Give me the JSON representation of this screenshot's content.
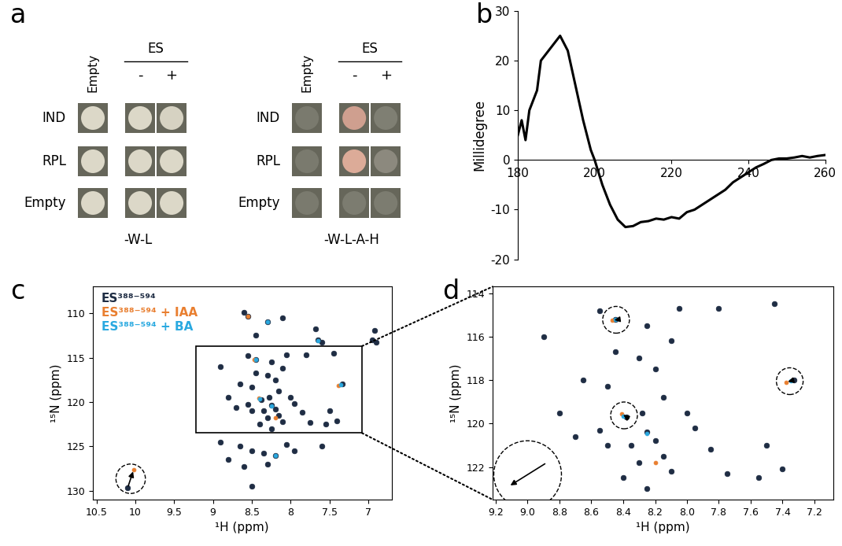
{
  "panel_labels": [
    "a",
    "b",
    "c",
    "d"
  ],
  "spot_assay": {
    "row_labels": [
      "IND",
      "RPL",
      "Empty"
    ],
    "column_labels": [
      "Empty",
      "-",
      "+"
    ],
    "group_label": "ES",
    "plates": [
      {
        "medium": "-W-L",
        "colors": [
          [
            "#dcd8c8",
            "#dcd8c8",
            "#d6d2c2"
          ],
          [
            "#dcd8c8",
            "#dcd8c8",
            "#dcd8c8"
          ],
          [
            "#dcd8c8",
            "#dcd8c8",
            "#dcd8c8"
          ]
        ]
      },
      {
        "medium": "-W-L-A-H",
        "colors": [
          [
            "#7a7a6e",
            "#cf9f8f",
            "#7f7f73"
          ],
          [
            "#7a7a6e",
            "#dcab98",
            "#8c897e"
          ],
          [
            "#7a7a6e",
            "#7c7c70",
            "#7c7c70"
          ]
        ]
      }
    ]
  },
  "chart_data": [
    {
      "type": "line",
      "ylabel": "Millidegree",
      "color": "#000000",
      "x": [
        180,
        181,
        182,
        183,
        185,
        186,
        188,
        190,
        191,
        193,
        195,
        197,
        199,
        200,
        202,
        204,
        206,
        208,
        210,
        212,
        214,
        216,
        218,
        220,
        222,
        224,
        226,
        228,
        230,
        232,
        234,
        236,
        238,
        240,
        242,
        244,
        246,
        248,
        250,
        252,
        254,
        256,
        258,
        260
      ],
      "values": [
        5,
        8,
        4,
        10,
        14,
        20,
        22,
        24,
        25,
        22,
        15,
        8,
        2,
        0,
        -5,
        -9,
        -12,
        -13.5,
        -13.3,
        -12.5,
        -12.3,
        -11.8,
        -12,
        -11.5,
        -11.8,
        -10.5,
        -10,
        -9,
        -8,
        -7,
        -6,
        -4.5,
        -3.5,
        -2.5,
        -1.5,
        -0.8,
        0,
        0.3,
        0.3,
        0.5,
        0.8,
        0.5,
        0.8,
        1
      ],
      "xlim": [
        180,
        260
      ],
      "xticks": [
        180,
        200,
        220,
        240,
        260
      ],
      "ylim": [
        -20,
        30
      ],
      "yticks": [
        -20,
        -10,
        0,
        10,
        20,
        30
      ]
    },
    {
      "type": "scatter",
      "xlabel": "¹H (ppm)",
      "ylabel": "¹⁵N (ppm)",
      "xlim": [
        10.55,
        6.7
      ],
      "xticks": [
        10.5,
        10,
        9.5,
        9,
        8.5,
        8,
        7.5,
        7
      ],
      "ylim": [
        131,
        107
      ],
      "yticks": [
        110,
        115,
        120,
        125,
        130
      ],
      "series": [
        {
          "name": "ES³⁸⁸⁻⁵⁹⁴",
          "color": "#1f2d44",
          "marker": "o",
          "x": [
            10.1,
            7.65,
            7.6,
            6.95,
            6.9,
            7.68,
            6.92,
            8.6,
            8.55,
            8.3,
            8.45,
            8.1,
            8.65,
            8.5,
            8.35,
            8.2,
            8.6,
            8.5,
            8.3,
            8.05,
            7.95,
            8.9,
            7.6,
            8.8,
            8.45,
            7.33,
            8.38,
            8.55,
            8.25,
            8.05,
            7.8,
            7.45,
            8.3,
            8.2,
            8.5,
            8.65,
            8.15,
            8.28,
            8.25,
            8.2,
            8.35,
            8.3,
            8.15,
            8.1,
            8.4,
            8.5,
            8.55,
            8.7,
            7.95,
            7.85,
            7.75,
            7.5,
            7.55,
            8.0,
            8.25,
            7.4,
            8.1,
            8.45,
            8.9,
            8.8
          ],
          "y": [
            129.7,
            113.0,
            113.3,
            113.0,
            113.3,
            111.8,
            111.9,
            109.9,
            110.3,
            111.0,
            112.5,
            110.5,
            125.0,
            125.5,
            125.8,
            126.0,
            127.3,
            129.5,
            127.0,
            124.8,
            125.5,
            124.5,
            125.0,
            126.5,
            115.2,
            118.0,
            119.7,
            114.8,
            115.5,
            114.7,
            114.7,
            114.5,
            117.0,
            117.5,
            118.3,
            118.0,
            118.8,
            119.5,
            120.4,
            120.8,
            121.0,
            121.8,
            121.5,
            122.2,
            122.5,
            121.0,
            120.3,
            120.6,
            120.2,
            121.2,
            122.3,
            121.0,
            122.5,
            119.5,
            123.0,
            122.1,
            116.2,
            116.7,
            116.0,
            119.5
          ]
        },
        {
          "name": "ES³⁸⁸⁻⁵⁹⁴ + IAA",
          "color": "#e97f30",
          "marker": "o",
          "x": [
            10.02,
            8.47,
            7.38,
            8.41,
            8.55,
            8.2
          ],
          "y": [
            127.6,
            115.25,
            118.1,
            119.55,
            110.3,
            121.8
          ]
        },
        {
          "name": "ES³⁸⁸⁻⁵⁹⁴ + BA",
          "color": "#2aa9e0",
          "marker": "o",
          "x": [
            8.45,
            7.35,
            8.4,
            8.25,
            7.65,
            8.3,
            8.2
          ],
          "y": [
            115.22,
            118.05,
            119.65,
            120.45,
            113.1,
            111.0,
            126.0
          ]
        }
      ],
      "shifts": [
        {
          "from": [
            10.1,
            129.7
          ],
          "to": [
            10.02,
            127.6
          ]
        }
      ]
    },
    {
      "type": "scatter",
      "xlabel": "¹H (ppm)",
      "ylabel": "¹⁵N (ppm)",
      "xlim": [
        9.22,
        7.08
      ],
      "xticks": [
        9.2,
        9.0,
        8.8,
        8.6,
        8.4,
        8.2,
        8.0,
        7.8,
        7.6,
        7.4,
        7.2
      ],
      "ylim": [
        123.5,
        113.7
      ],
      "yticks": [
        114,
        116,
        118,
        120,
        122
      ],
      "series": [
        {
          "color": "#1f2d44",
          "marker": "o",
          "x": [
            8.45,
            7.33,
            8.38,
            8.55,
            8.25,
            8.05,
            7.8,
            7.45,
            8.3,
            8.2,
            8.5,
            8.65,
            8.15,
            8.28,
            8.25,
            8.2,
            8.35,
            8.3,
            8.15,
            8.1,
            8.4,
            8.5,
            8.55,
            8.7,
            7.95,
            7.85,
            7.75,
            7.5,
            7.55,
            8.0,
            8.25,
            7.4,
            8.1,
            8.45,
            8.9,
            8.8
          ],
          "y": [
            115.2,
            118.0,
            119.7,
            114.8,
            115.5,
            114.7,
            114.7,
            114.5,
            117.0,
            117.5,
            118.3,
            118.0,
            118.8,
            119.5,
            120.4,
            120.8,
            121.0,
            121.8,
            121.5,
            122.2,
            122.5,
            121.0,
            120.3,
            120.6,
            120.2,
            121.2,
            122.3,
            121.0,
            122.5,
            119.5,
            123.0,
            122.1,
            116.2,
            116.7,
            116.0,
            119.5
          ]
        },
        {
          "color": "#e97f30",
          "marker": "o",
          "x": [
            8.47,
            7.38,
            8.41,
            8.2
          ],
          "y": [
            115.25,
            118.1,
            119.55,
            121.8
          ]
        },
        {
          "color": "#2aa9e0",
          "marker": "o",
          "x": [
            8.45,
            7.35,
            8.4,
            8.25
          ],
          "y": [
            115.22,
            118.05,
            119.65,
            120.45
          ]
        }
      ],
      "shifts": [
        {
          "from": [
            8.42,
            115.2
          ],
          "to": [
            8.47,
            115.25
          ]
        },
        {
          "from": [
            7.33,
            118.0
          ],
          "to": [
            7.38,
            118.1
          ]
        },
        {
          "from": [
            8.38,
            119.7
          ],
          "to": [
            8.41,
            119.55
          ]
        },
        {
          "from": [
            8.88,
            121.8
          ],
          "to": [
            9.12,
            122.9
          ]
        }
      ]
    }
  ]
}
